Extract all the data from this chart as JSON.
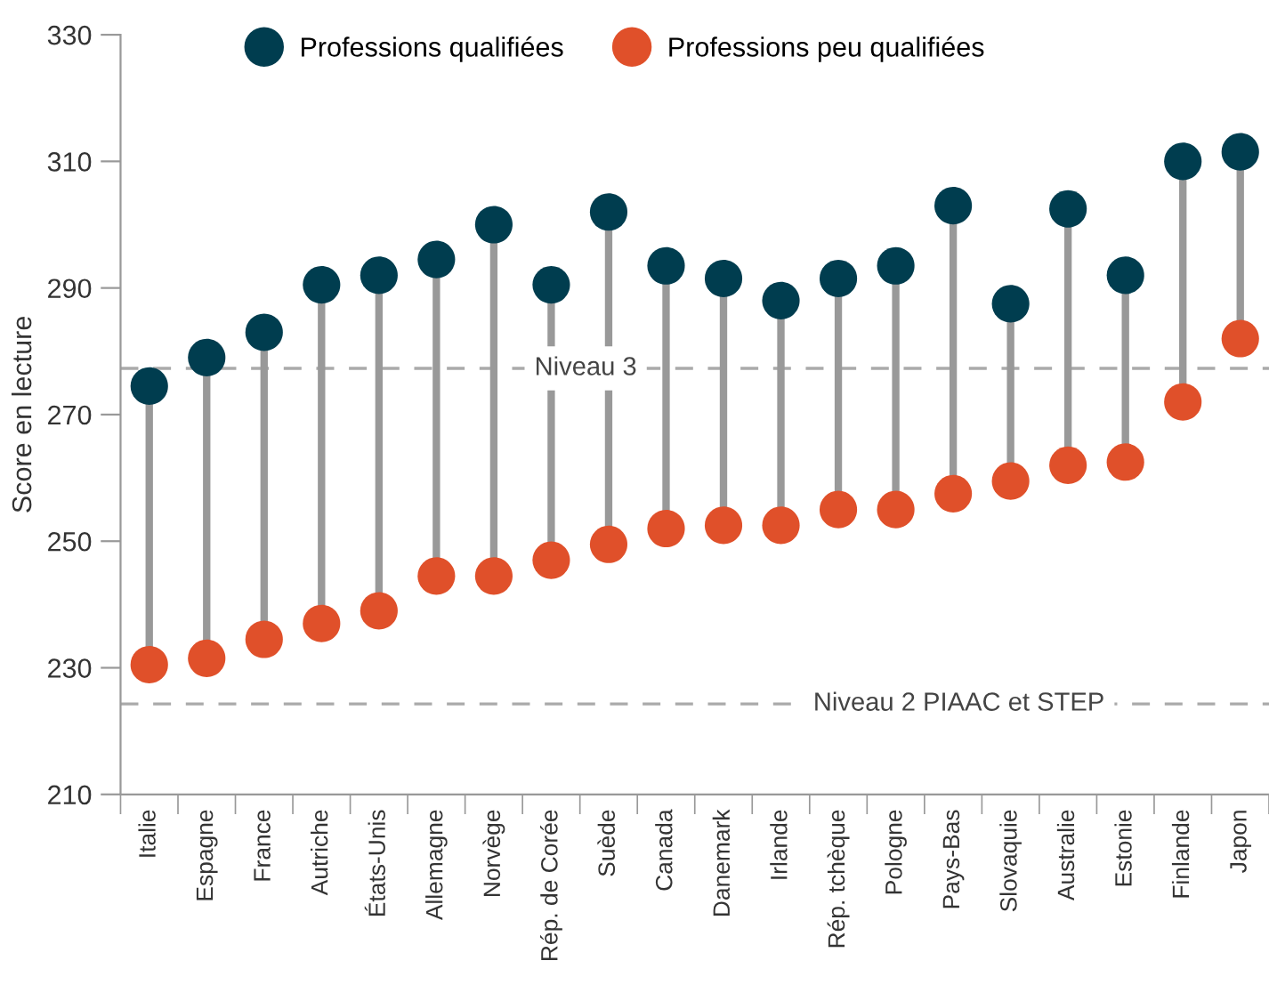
{
  "chart_data": {
    "type": "scatter",
    "ylabel": "Score en lecture",
    "categories": [
      "Italie",
      "Espagne",
      "France",
      "Autriche",
      "États-Unis",
      "Allemagne",
      "Norvège",
      "Rép. de Corée",
      "Suède",
      "Canada",
      "Danemark",
      "Irlande",
      "Rép. tchèque",
      "Pologne",
      "Pays-Bas",
      "Slovaquie",
      "Australie",
      "Estonie",
      "Finlande",
      "Japon"
    ],
    "series": [
      {
        "name": "Professions qualifiées",
        "color": "#003d4f",
        "values": [
          274.5,
          279,
          283,
          290.5,
          292,
          294.5,
          300,
          290.5,
          302,
          293.5,
          291.5,
          288,
          291.5,
          293.5,
          303,
          287.5,
          302.5,
          292,
          310,
          311.5
        ]
      },
      {
        "name": "Professions peu qualifiées",
        "color": "#e0502a",
        "values": [
          230.5,
          231.5,
          234.5,
          237,
          239,
          244.5,
          244.5,
          247,
          249.5,
          252,
          252.5,
          252.5,
          255,
          255,
          257.5,
          259.5,
          262,
          262.5,
          272,
          282
        ]
      }
    ],
    "ylim": [
      210,
      330
    ],
    "yticks": [
      210,
      230,
      250,
      270,
      290,
      310,
      330
    ],
    "ref_lines": [
      {
        "axis": "y",
        "value": 277.3,
        "label": "Niveau 3",
        "color": "#aaaaaa",
        "line_style": "dashed"
      },
      {
        "axis": "y",
        "value": 224.3,
        "label": "Niveau 2 PIAAC et STEP",
        "color": "#aaaaaa",
        "line_style": "dashed"
      }
    ],
    "marker": "circle",
    "grid": false,
    "legend": "top"
  }
}
